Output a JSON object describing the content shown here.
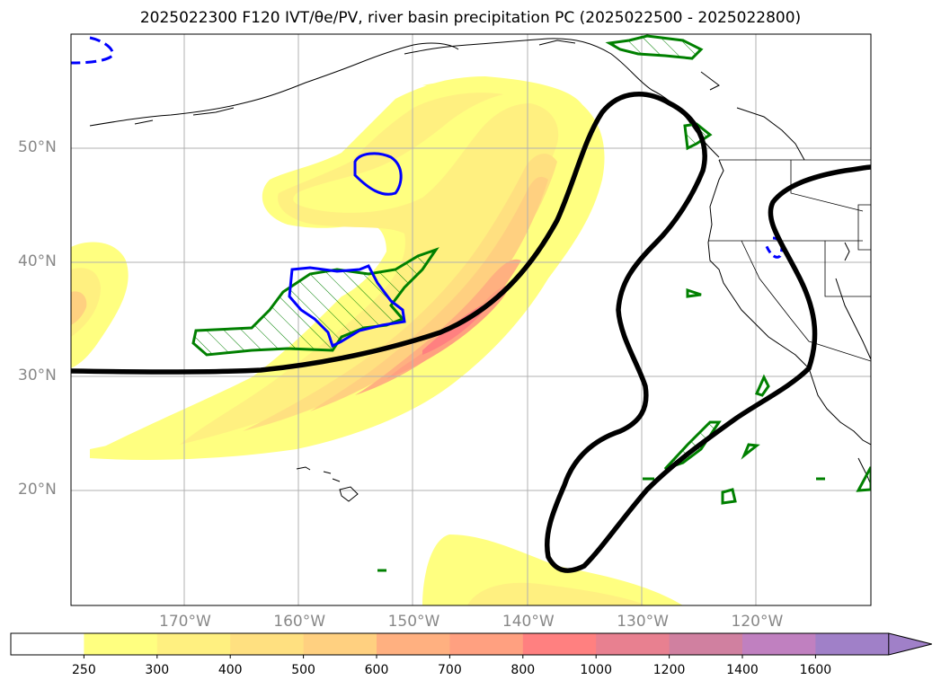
{
  "title": "2025022300 F120 IVT/θe/PV, river basin precipitation PC (2025022500 - 2025022800)",
  "map": {
    "lat_ticks": [
      {
        "value": 50,
        "label": "50°N"
      },
      {
        "value": 40,
        "label": "40°N"
      },
      {
        "value": 30,
        "label": "30°N"
      },
      {
        "value": 20,
        "label": "20°N"
      }
    ],
    "lon_ticks": [
      {
        "value": -170,
        "label": "170°W"
      },
      {
        "value": -160,
        "label": "160°W"
      },
      {
        "value": -150,
        "label": "150°W"
      },
      {
        "value": -140,
        "label": "140°W"
      },
      {
        "value": -130,
        "label": "130°W"
      },
      {
        "value": -120,
        "label": "120°W"
      }
    ],
    "colors": {
      "ivt_contour": "#000000",
      "pv_positive": "#0000ff",
      "hatched_region": "#008000",
      "coastline": "#000000",
      "grid": "#b0b0b0"
    }
  },
  "colorbar": {
    "levels": [
      "250",
      "300",
      "400",
      "500",
      "600",
      "700",
      "800",
      "1000",
      "1200",
      "1400",
      "1600"
    ],
    "colors": [
      "#ffffff",
      "#ffff80",
      "#fff080",
      "#ffe080",
      "#ffd080",
      "#ffb080",
      "#ffa080",
      "#ff8080",
      "#e88090",
      "#d080a0",
      "#c080c0",
      "#a080c8"
    ]
  }
}
